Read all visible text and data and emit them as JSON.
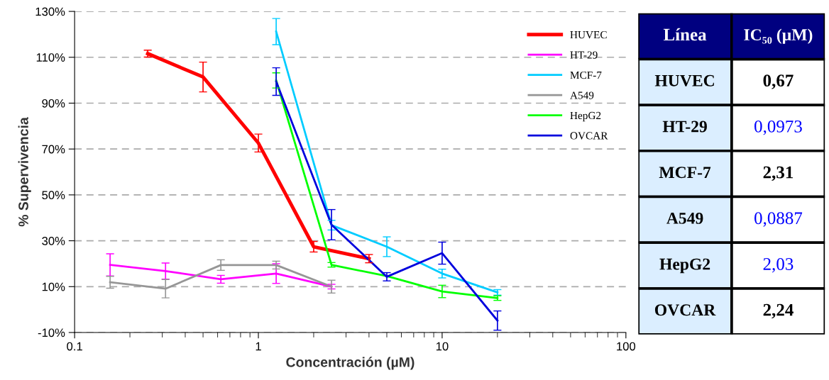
{
  "chart_data": [
    {
      "type": "line",
      "xlabel": "Concentración (µM)",
      "ylabel": "% Supervivencia",
      "log": "x",
      "xlim": [
        0.1,
        100
      ],
      "xticks": [
        0.1,
        1,
        10,
        100
      ],
      "ylim": [
        -10,
        130
      ],
      "yticks": [
        {
          "value": -10,
          "label": "-10%"
        },
        {
          "value": 10,
          "label": "10%"
        },
        {
          "value": 30,
          "label": "30%"
        },
        {
          "value": 50,
          "label": "50%"
        },
        {
          "value": 70,
          "label": "70%"
        },
        {
          "value": 90,
          "label": "90%"
        },
        {
          "value": 110,
          "label": "110%"
        },
        {
          "value": 130,
          "label": "130%"
        }
      ],
      "grid": "y",
      "legend": "top right",
      "marker": "none",
      "line_style": "solid",
      "series": [
        {
          "name": "HUVEC",
          "color": "#ff0000",
          "x": [
            0.25,
            0.5,
            1,
            2,
            4
          ],
          "values": [
            111.6,
            101.4,
            72.6,
            27.4,
            22.2
          ],
          "errors": [
            1.5,
            6.5,
            3.9,
            2.3,
            1.8
          ]
        },
        {
          "name": "HT-29",
          "color": "#ff00ff",
          "x": [
            0.156,
            0.3125,
            0.625,
            1.25,
            2.5
          ],
          "values": [
            19.5,
            16.8,
            13.2,
            15.7,
            10
          ],
          "errors": [
            4.8,
            3.5,
            1.7,
            4.3,
            1
          ]
        },
        {
          "name": "MCF-7",
          "color": "#00ccff",
          "x": [
            1.25,
            2.5,
            5,
            10,
            20
          ],
          "values": [
            121.2,
            36.8,
            27.4,
            15.7,
            7.5
          ],
          "errors": [
            5.7,
            2.1,
            4.3,
            1.9,
            1.2
          ]
        },
        {
          "name": "A549",
          "color": "#969696",
          "x": [
            0.156,
            0.3125,
            0.625,
            1.25,
            2.5
          ],
          "values": [
            11.9,
            9.1,
            19.4,
            19.4,
            10
          ],
          "errors": [
            2.6,
            4,
            2.3,
            1.7,
            2.8
          ]
        },
        {
          "name": "HepG2",
          "color": "#00ff00",
          "x": [
            1.25,
            2.5,
            5,
            10,
            20
          ],
          "values": [
            99.9,
            19.5,
            14.6,
            7.9,
            5
          ],
          "errors": [
            3.3,
            1,
            null,
            2.7,
            1
          ]
        },
        {
          "name": "OVCAR",
          "color": "#0000dd",
          "x": [
            1.25,
            2.5,
            5,
            10,
            20
          ],
          "values": [
            99.4,
            37,
            14.3,
            24.6,
            -4.8
          ],
          "errors": [
            6,
            6.6,
            1.8,
            4.8,
            4.2
          ]
        }
      ]
    },
    {
      "type": "other",
      "ylabel": "Línea",
      "categories": [
        "IC₅₀ (µM)"
      ],
      "y_categories": [
        "HUVEC",
        "HT-29",
        "MCF-7",
        "A549",
        "HepG2",
        "OVCAR"
      ],
      "cell_labels": [
        [
          "0,67"
        ],
        [
          "0,0973"
        ],
        [
          "2,31"
        ],
        [
          "0,0887"
        ],
        [
          "2,03"
        ],
        [
          "2,24"
        ]
      ],
      "colors": [
        "#000000",
        "#0000ff",
        "#000000",
        "#0000ff",
        "#0000ff",
        "#000000"
      ]
    }
  ]
}
